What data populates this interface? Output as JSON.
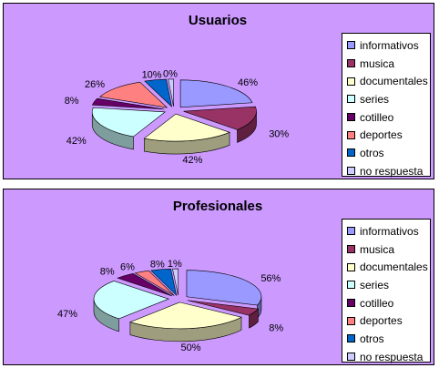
{
  "colors": {
    "informativos": "#9999ff",
    "musica": "#993366",
    "documentales": "#ffffcc",
    "series": "#ccffff",
    "cotilleo": "#660066",
    "deportes": "#ff8080",
    "otros": "#0066cc",
    "no respuesta": "#ccccff"
  },
  "chart_data": [
    {
      "type": "pie",
      "title": "Usuarios",
      "categories": [
        "informativos",
        "musica",
        "documentales",
        "series",
        "cotilleo",
        "deportes",
        "otros",
        "no respuesta"
      ],
      "values": [
        46,
        30,
        42,
        42,
        8,
        26,
        10,
        0
      ],
      "data_labels": [
        "46%",
        "30%",
        "42%",
        "42%",
        "8%",
        "26%",
        "10%",
        "0%"
      ],
      "legend_position": "right"
    },
    {
      "type": "pie",
      "title": "Profesionales",
      "categories": [
        "informativos",
        "musica",
        "documentales",
        "series",
        "cotilleo",
        "deportes",
        "otros",
        "no respuesta"
      ],
      "values": [
        56,
        8,
        50,
        47,
        8,
        6,
        8,
        1
      ],
      "data_labels": [
        "56%",
        "8%",
        "50%",
        "47%",
        "8%",
        "6%",
        "8%",
        "1%"
      ],
      "legend_position": "right"
    }
  ]
}
